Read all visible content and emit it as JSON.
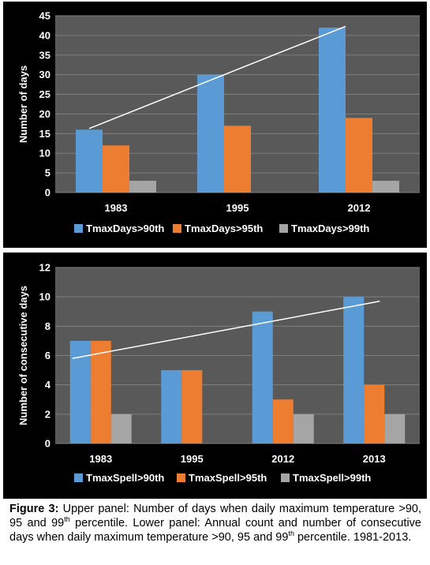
{
  "colors": {
    "panel_bg": "#000000",
    "plot_bg": "#595959",
    "grid": "#7f7f7f",
    "text": "#ffffff",
    "trend": "#ffffff",
    "series": [
      "#5b9bd5",
      "#ed7d31",
      "#a5a5a5"
    ]
  },
  "chart_data": [
    {
      "type": "bar",
      "categories": [
        "1983",
        "1995",
        "2012"
      ],
      "series": [
        {
          "name": "TmaxDays>90th",
          "values": [
            16,
            30,
            42
          ]
        },
        {
          "name": "TmaxDays>95th",
          "values": [
            12,
            17,
            19
          ]
        },
        {
          "name": "TmaxDays>99th",
          "values": [
            3,
            0,
            3
          ]
        }
      ],
      "ylabel": "Number of days",
      "ylim": [
        0,
        45
      ],
      "yticks": [
        0,
        5,
        10,
        15,
        20,
        25,
        30,
        35,
        40,
        45
      ],
      "trendline": {
        "from": {
          "category": "1983",
          "y": 16.3
        },
        "to": {
          "category": "2012",
          "y": 42.3
        }
      },
      "legend": "bottom",
      "grid": true
    },
    {
      "type": "bar",
      "categories": [
        "1983",
        "1995",
        "2012",
        "2013"
      ],
      "series": [
        {
          "name": "TmaxSpell>90th",
          "values": [
            7,
            5,
            9,
            10
          ]
        },
        {
          "name": "TmaxSpell>95th",
          "values": [
            7,
            5,
            3,
            4
          ]
        },
        {
          "name": "TmaxSpell>99th",
          "values": [
            2,
            0,
            2,
            2
          ]
        }
      ],
      "ylabel": "Number of consecutive days",
      "ylim": [
        0,
        12
      ],
      "yticks": [
        0,
        2,
        4,
        6,
        8,
        10,
        12
      ],
      "trendline": {
        "from": {
          "category": "1983",
          "y": 5.8
        },
        "to": {
          "category": "2013",
          "y": 9.7
        }
      },
      "legend": "bottom",
      "grid": true
    }
  ],
  "caption": {
    "label": "Figure 3:",
    "text_1": " Upper panel: Number of days when daily maximum temperature >90, 95 and 99",
    "sup_1": "th",
    "text_2": " percentile. Lower panel: Annual count and number of consecutive days when daily maximum temperature >90, 95 and 99",
    "sup_2": "th",
    "text_3": " percentile. 1981-2013."
  }
}
